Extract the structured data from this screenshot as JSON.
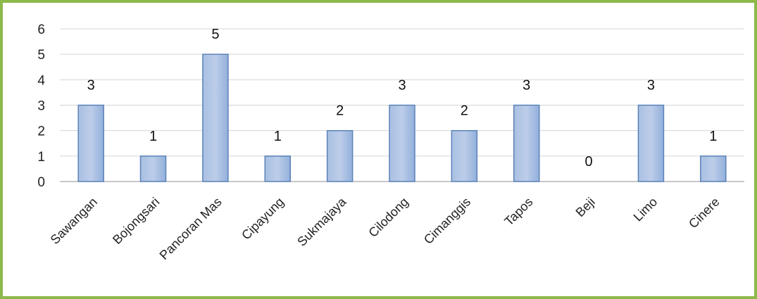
{
  "chart_data": {
    "type": "bar",
    "categories": [
      "Sawangan",
      "Bojongsari",
      "Pancoran Mas",
      "Cipayung",
      "Sukmajaya",
      "Cilodong",
      "Cimanggis",
      "Tapos",
      "Beji",
      "Limo",
      "Cinere"
    ],
    "values": [
      3,
      1,
      5,
      1,
      2,
      3,
      2,
      3,
      0,
      3,
      1
    ],
    "ylim": [
      0,
      6
    ],
    "yticks": [
      0,
      1,
      2,
      3,
      4,
      5,
      6
    ],
    "grid": true,
    "legend": "none",
    "bar_color": "#a9c0e2",
    "bar_edge_color": "#5b82b8",
    "frame_color": "#8db84a"
  }
}
